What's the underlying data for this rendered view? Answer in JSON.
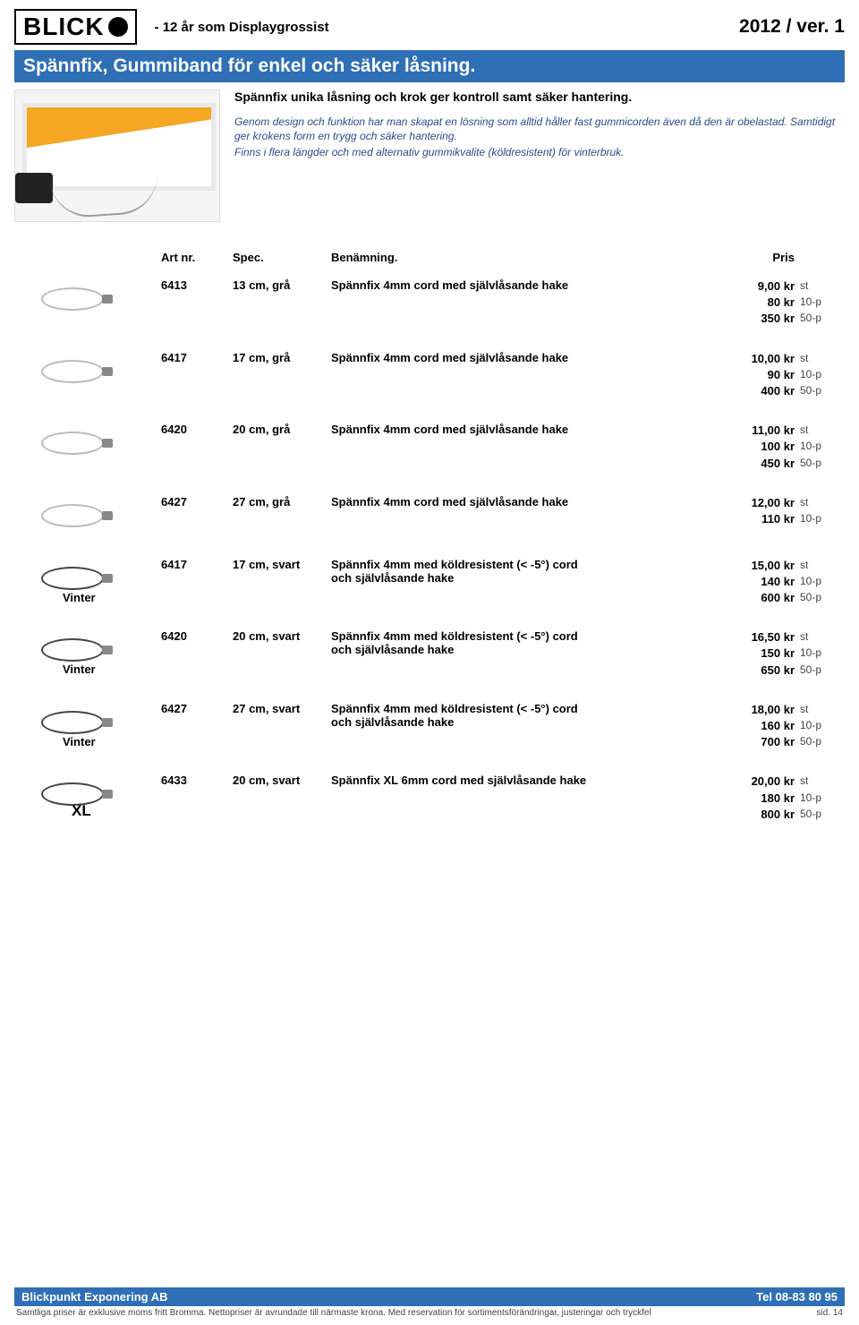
{
  "logo": {
    "text": "BLICK"
  },
  "tagline": "- 12 år som Displaygrossist",
  "version": "2012 / ver. 1",
  "banner": "Spännfix, Gummiband för enkel och säker låsning.",
  "hero": {
    "title": "Spännfix unika låsning och krok ger kontroll samt säker hantering.",
    "para1": "Genom design och funktion har man skapat en lösning som alltid håller fast gummicorden även då den är obelastad. Samtidigt ger krokens form en trygg och säker hantering.",
    "para2": "Finns i flera längder och med alternativ gummikvalite (köldresistent) för vinterbruk."
  },
  "headers": {
    "art": "Art nr.",
    "spec": "Spec.",
    "desc": "Benämning.",
    "price": "Pris"
  },
  "labels": {
    "vinter": "Vinter",
    "xl": "XL"
  },
  "products": [
    {
      "art": "6413",
      "spec": "13 cm, grå",
      "desc": "Spännfix 4mm cord med självlåsande hake",
      "tag": "",
      "dark": false,
      "prices": [
        {
          "val": "9,00 kr",
          "unit": "st"
        },
        {
          "val": "80 kr",
          "unit": "10-p"
        },
        {
          "val": "350 kr",
          "unit": "50-p"
        }
      ]
    },
    {
      "art": "6417",
      "spec": "17 cm, grå",
      "desc": "Spännfix 4mm cord med självlåsande hake",
      "tag": "",
      "dark": false,
      "prices": [
        {
          "val": "10,00 kr",
          "unit": "st"
        },
        {
          "val": "90 kr",
          "unit": "10-p"
        },
        {
          "val": "400 kr",
          "unit": "50-p"
        }
      ]
    },
    {
      "art": "6420",
      "spec": "20 cm, grå",
      "desc": "Spännfix 4mm cord med självlåsande hake",
      "tag": "",
      "dark": false,
      "prices": [
        {
          "val": "11,00 kr",
          "unit": "st"
        },
        {
          "val": "100 kr",
          "unit": "10-p"
        },
        {
          "val": "450 kr",
          "unit": "50-p"
        }
      ]
    },
    {
      "art": "6427",
      "spec": "27 cm, grå",
      "desc": "Spännfix 4mm cord med självlåsande hake",
      "tag": "",
      "dark": false,
      "prices": [
        {
          "val": "12,00 kr",
          "unit": "st"
        },
        {
          "val": "110 kr",
          "unit": "10-p"
        }
      ]
    },
    {
      "art": "6417",
      "spec": "17 cm, svart",
      "desc": "Spännfix 4mm med köldresistent (< -5°) cord",
      "desc2": "och självlåsande hake",
      "tag": "vinter",
      "dark": true,
      "prices": [
        {
          "val": "15,00 kr",
          "unit": "st"
        },
        {
          "val": "140 kr",
          "unit": "10-p"
        },
        {
          "val": "600 kr",
          "unit": "50-p"
        }
      ]
    },
    {
      "art": "6420",
      "spec": "20 cm, svart",
      "desc": "Spännfix 4mm med köldresistent (< -5°) cord",
      "desc2": "och självlåsande hake",
      "tag": "vinter",
      "dark": true,
      "prices": [
        {
          "val": "16,50 kr",
          "unit": "st"
        },
        {
          "val": "150 kr",
          "unit": "10-p"
        },
        {
          "val": "650 kr",
          "unit": "50-p"
        }
      ]
    },
    {
      "art": "6427",
      "spec": "27 cm, svart",
      "desc": "Spännfix 4mm med köldresistent (< -5°) cord",
      "desc2": "och självlåsande hake",
      "tag": "vinter",
      "dark": true,
      "prices": [
        {
          "val": "18,00 kr",
          "unit": "st"
        },
        {
          "val": "160 kr",
          "unit": "10-p"
        },
        {
          "val": "700 kr",
          "unit": "50-p"
        }
      ]
    },
    {
      "art": "6433",
      "spec": "20 cm, svart",
      "desc": "Spännfix XL 6mm cord med självlåsande hake",
      "tag": "xl",
      "dark": true,
      "prices": [
        {
          "val": "20,00 kr",
          "unit": "st"
        },
        {
          "val": "180 kr",
          "unit": "10-p"
        },
        {
          "val": "800 kr",
          "unit": "50-p"
        }
      ]
    }
  ],
  "footer": {
    "company": "Blickpunkt Exponering AB",
    "phone": "Tel 08-83 80 95",
    "disclaimer": "Samtliga priser är exklusive moms fritt Bromma. Nettopriser är avrundade till närmaste krona. Med reservation för sortimentsförändringar, justeringar och tryckfel",
    "page": "sid. 14"
  }
}
